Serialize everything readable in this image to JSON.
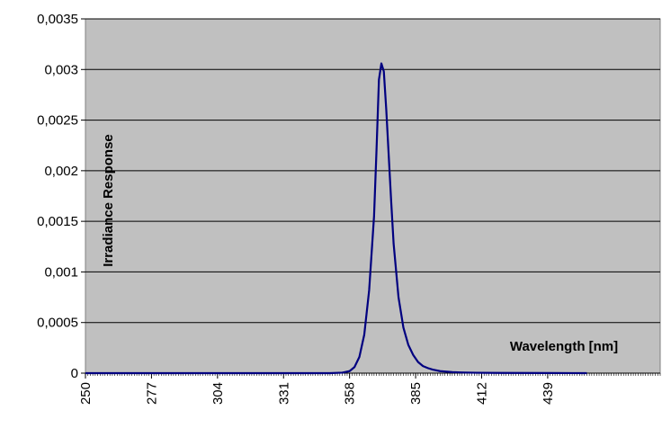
{
  "chart_data": {
    "type": "line",
    "title": "",
    "xlabel": "Wavelength [nm]",
    "ylabel": "Irradiance Response",
    "xlim": [
      250,
      485
    ],
    "ylim": [
      0,
      0.0035
    ],
    "x_ticks": [
      "250",
      "277",
      "304",
      "331",
      "358",
      "385",
      "412",
      "439"
    ],
    "y_ticks": [
      "0",
      "0,0005",
      "0,001",
      "0,0015",
      "0,002",
      "0,0025",
      "0,003",
      "0,0035"
    ],
    "grid": "horizontal",
    "legend": "none",
    "colors": {
      "plot_bg": "#c0c0c0",
      "line": "#000080",
      "grid": "#000000"
    },
    "series": [
      {
        "x": [
          250,
          300,
          350,
          355,
          358,
          360,
          362,
          364,
          366,
          368,
          369,
          370,
          371,
          372,
          373,
          374,
          375,
          376,
          378,
          380,
          382,
          384,
          386,
          388,
          390,
          392,
          395,
          400,
          405,
          410,
          420,
          440,
          455
        ],
        "y": [
          0,
          0,
          0,
          5e-06,
          2e-05,
          6e-05,
          0.00016,
          0.00038,
          0.00082,
          0.00155,
          0.0022,
          0.0029,
          0.00306,
          0.00298,
          0.0026,
          0.00215,
          0.0017,
          0.00128,
          0.00075,
          0.00045,
          0.00028,
          0.00018,
          0.00011,
          7e-05,
          5e-05,
          3.5e-05,
          2e-05,
          1e-05,
          6e-06,
          4e-06,
          2e-06,
          1e-06,
          0
        ]
      }
    ]
  }
}
